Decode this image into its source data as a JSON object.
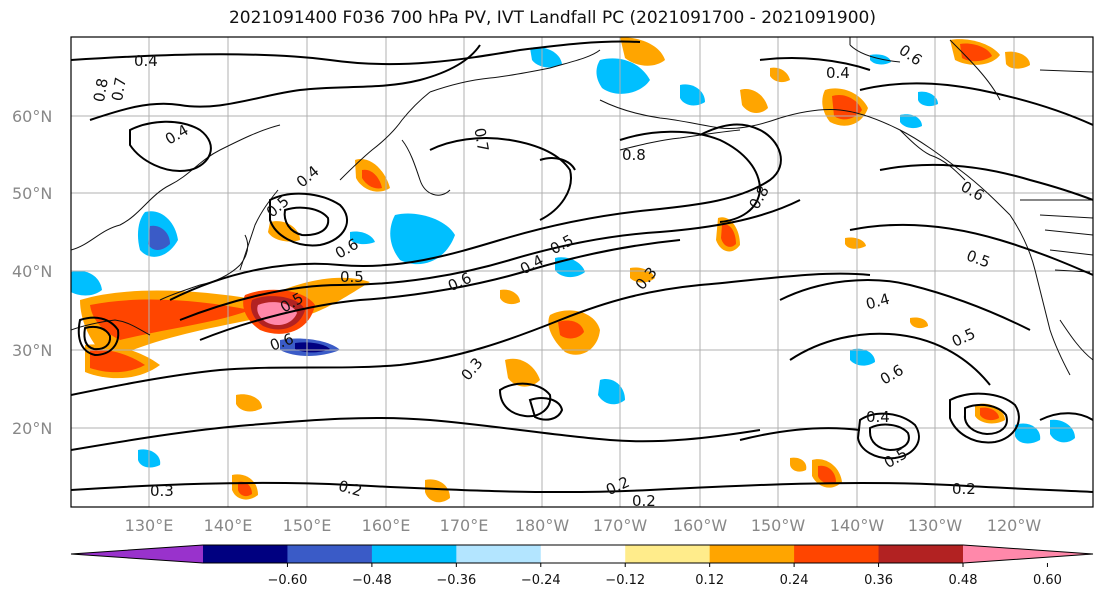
{
  "title": "2021091400 F036 700 hPa PV, IVT Landfall PC (2021091700 - 2021091900)",
  "lat_labels": [
    "60°N",
    "50°N",
    "40°N",
    "30°N",
    "20°N"
  ],
  "lon_labels": [
    "130°E",
    "140°E",
    "150°E",
    "160°E",
    "170°E",
    "180°W",
    "170°W",
    "160°W",
    "150°W",
    "140°W",
    "130°W",
    "120°W"
  ],
  "contour_labels": {
    "c1": "0.4",
    "c2": "0.8",
    "c3": "0.7",
    "c4": "0.4",
    "c5": "0.4",
    "c6": "0.5",
    "c7": "0.6",
    "c8": "0.5",
    "c9": "0.6",
    "c10": "0.6",
    "c11": "0.4",
    "c12": "0.5",
    "c13": "0.3",
    "c14": "0.3",
    "c15": "0.5",
    "c16": "0.4",
    "c17": "0.5",
    "c18": "0.6",
    "c19": "0.4",
    "c20": "0.5",
    "c21": "0.2",
    "c22": "0.2",
    "c23": "0.2",
    "c24": "0.3",
    "c25": "0.2",
    "c26": "0.8",
    "c27": "0.7",
    "c28": "0.6",
    "c29": "0.8",
    "c30": "0.4",
    "c31": "0.6",
    "c32": "0.5"
  },
  "colorbar": {
    "ticks": [
      "−0.60",
      "−0.48",
      "−0.36",
      "−0.24",
      "−0.12",
      "0.12",
      "0.24",
      "0.36",
      "0.48",
      "0.60"
    ],
    "colors": [
      "#9932cc",
      "#000080",
      "#3a5bc7",
      "#00bfff",
      "#b3e5ff",
      "#ffffff",
      "#ffec8b",
      "#ffa500",
      "#ff4500",
      "#b22222",
      "#ff88aa"
    ]
  }
}
